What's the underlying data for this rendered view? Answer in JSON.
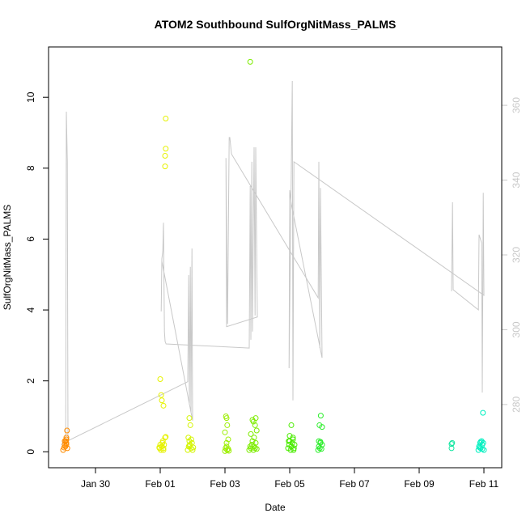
{
  "chart_data": {
    "type": "scatter",
    "title": "ATOM2 Southbound SulfOrgNitMass_PALMS",
    "x_label": "Date",
    "y_label": "SulfOrgNitMass_PALMS",
    "xlim": [
      28.55,
      42.55
    ],
    "ylim": [
      -0.45,
      11.42
    ],
    "y2lim": [
      263.1,
      375.6
    ],
    "xticks": [
      {
        "value": 30,
        "label": "Jan 30"
      },
      {
        "value": 32,
        "label": "Feb 01"
      },
      {
        "value": 34,
        "label": "Feb 03"
      },
      {
        "value": 36,
        "label": "Feb 05"
      },
      {
        "value": 38,
        "label": "Feb 07"
      },
      {
        "value": 40,
        "label": "Feb 09"
      },
      {
        "value": 42,
        "label": "Feb 11"
      }
    ],
    "yticks": [
      0,
      2,
      4,
      6,
      8,
      10
    ],
    "y2ticks": [
      280,
      300,
      320,
      340,
      360
    ],
    "series": [
      {
        "color": "#ff8c00",
        "x": [
          29.0,
          29.05,
          29.08,
          29.1,
          29.1,
          29.12,
          29.07,
          29.1,
          29.05,
          29.13,
          29.1,
          29.03
        ],
        "values": [
          0.05,
          0.2,
          0.3,
          0.35,
          0.25,
          0.6,
          0.15,
          0.4,
          0.3,
          0.1,
          0.2,
          0.12
        ]
      },
      {
        "color": "#e6f200",
        "x": [
          31.98,
          32.0,
          32.02,
          32.05,
          32.07,
          32.1,
          32.0,
          32.03,
          32.05,
          32.1,
          32.15,
          32.15,
          32.17,
          32.17,
          32.15,
          32.17,
          32.08,
          32.1,
          32.12,
          31.97
        ],
        "values": [
          0.1,
          0.2,
          0.05,
          0.15,
          0.25,
          0.1,
          2.05,
          1.6,
          1.45,
          1.3,
          8.05,
          8.35,
          8.55,
          9.4,
          0.4,
          0.42,
          0.3,
          0.05,
          0.2,
          0.12
        ]
      },
      {
        "color": "#d4f500",
        "x": [
          32.85,
          32.88,
          32.9,
          32.92,
          32.95,
          32.98,
          33.0,
          32.9,
          32.93,
          32.87,
          32.96,
          33.02,
          32.9
        ],
        "values": [
          0.05,
          0.15,
          0.3,
          0.2,
          0.1,
          0.25,
          0.05,
          0.95,
          0.75,
          0.4,
          0.35,
          0.12,
          0.18
        ]
      },
      {
        "color": "#9cef00",
        "x": [
          34.0,
          34.02,
          34.05,
          34.07,
          34.1,
          34.12,
          34.03,
          34.05,
          34.07,
          34.0,
          34.1,
          34.05
        ],
        "values": [
          0.02,
          0.1,
          0.15,
          0.05,
          0.08,
          0.03,
          1.0,
          0.95,
          0.75,
          0.55,
          0.35,
          0.25
        ]
      },
      {
        "color": "#7dec00",
        "x": [
          34.75,
          34.78,
          34.8,
          34.83,
          34.85,
          34.88,
          34.9,
          34.93,
          34.95,
          34.98,
          34.78,
          34.85,
          34.95,
          34.88,
          34.93,
          34.8,
          34.98,
          34.9
        ],
        "values": [
          0.05,
          0.15,
          0.1,
          0.2,
          0.3,
          0.05,
          0.15,
          0.1,
          0.25,
          0.08,
          11.0,
          0.9,
          0.95,
          0.85,
          0.75,
          0.5,
          0.6,
          0.4
        ]
      },
      {
        "color": "#4aeb00",
        "x": [
          35.95,
          35.98,
          36.0,
          36.03,
          36.05,
          36.08,
          36.1,
          36.13,
          36.15,
          36.0,
          36.05,
          36.1,
          35.97,
          36.12
        ],
        "values": [
          0.1,
          0.2,
          0.3,
          0.05,
          0.15,
          0.25,
          0.35,
          0.1,
          0.2,
          0.45,
          0.75,
          0.4,
          0.3,
          0.05
        ]
      },
      {
        "color": "#2cee2c",
        "x": [
          36.88,
          36.9,
          36.93,
          36.95,
          36.98,
          37.0,
          36.92,
          36.96,
          37.0,
          36.9,
          36.95
        ],
        "values": [
          0.05,
          0.15,
          0.1,
          0.25,
          0.08,
          0.2,
          0.75,
          1.02,
          0.7,
          0.3,
          0.28
        ]
      },
      {
        "color": "#11e6a0",
        "x": [
          41.0,
          41.02,
          41.0
        ],
        "values": [
          0.1,
          0.25,
          0.22
        ]
      },
      {
        "color": "#00f0c0",
        "x": [
          41.83,
          41.85,
          41.88,
          41.9,
          41.93,
          41.95,
          41.97,
          42.0,
          41.98,
          41.9,
          41.87,
          41.95
        ],
        "values": [
          0.05,
          0.15,
          0.25,
          0.1,
          0.3,
          0.2,
          1.1,
          0.05,
          0.25,
          0.28,
          0.12,
          0.08
        ]
      },
      {
        "type": "line",
        "axis": "y2",
        "color": "#c8c8c8",
        "x": [
          28.95,
          29.08,
          29.1,
          29.13,
          29.15,
          32.85,
          32.88,
          32.9,
          32.93,
          32.95,
          32.98,
          33.0,
          32.05,
          32.03,
          32.05,
          32.08,
          32.1,
          32.13,
          32.15,
          32.18,
          34.75,
          34.78,
          34.8,
          34.83,
          34.85,
          34.9,
          34.93,
          34.95,
          35.0,
          34.05,
          34.03,
          34.08,
          34.13,
          34.15,
          34.2,
          36.88,
          36.9,
          36.93,
          36.95,
          37.0,
          36.05,
          36.0,
          35.98,
          36.08,
          36.1,
          36.13,
          42.0,
          41.98,
          41.95,
          41.93,
          41.85,
          41.83,
          41.05,
          41.03,
          41.0
        ],
        "values": [
          269.2,
          271.4,
          358.3,
          344.9,
          270.3,
          286.1,
          314.6,
          280.0,
          316.8,
          277.8,
          321.7,
          275.7,
          318.3,
          304.9,
          318.9,
          321.1,
          328.6,
          299.5,
          296.9,
          296.2,
          295.1,
          338.4,
          297.3,
          344.9,
          299.5,
          348.8,
          303.8,
          348.8,
          303.4,
          300.8,
          345.9,
          301.6,
          351.4,
          351.4,
          347.0,
          308.5,
          344.9,
          295.1,
          337.9,
          292.5,
          333.6,
          337.3,
          289.7,
          366.5,
          281.1,
          344.9,
          309.2,
          336.6,
          283.2,
          323.2,
          325.4,
          305.3,
          310.7,
          334.1,
          310.3
        ]
      }
    ]
  }
}
